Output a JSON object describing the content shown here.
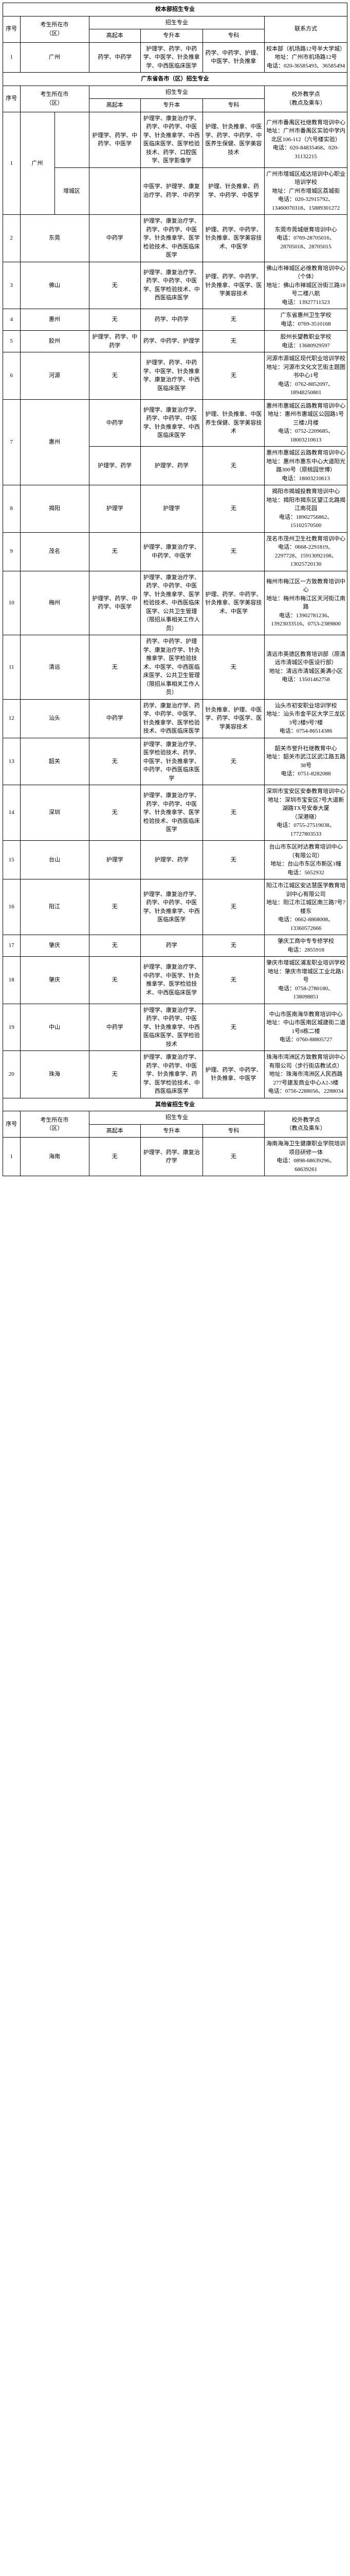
{
  "section1": {
    "title": "校本部招生专业",
    "headers": {
      "seq": "序号",
      "city": "考生所在市\n（区）",
      "majorGroup": "招生专业",
      "gao": "高起本",
      "zhuanben": "专升本",
      "zhuanke": "专科",
      "contact": "联系方式"
    },
    "rows": [
      {
        "seq": "1",
        "city": "广州",
        "gao": "药学、中药学",
        "zhuanben": "护理学、药学、中药学、中医学、针灸推拿学、中西医临床医学",
        "zhuanke": "药学、中药学、护理、中医学、针灸推拿",
        "contact": "校本部（机场路12号半大学城）\n地址：广州市机场路12号\n电话：020-36585493、36585494"
      }
    ]
  },
  "section2": {
    "title": "广东省各市（区）招生专业",
    "headers": {
      "seq": "序号",
      "city": "考生所在市\n（区）",
      "majorGroup": "招生专业",
      "gao": "高起本",
      "zhuanben": "专升本",
      "zhuanke": "专科",
      "contact": "校外教学点\n（教点及乘车）"
    },
    "rows": [
      {
        "seq": "1",
        "city": "广州",
        "sub1": "",
        "gao1": "护理学、药学、中药学、中医学",
        "zhuanben1": "护理学、康复治疗学、药学、中药学、中医学、针灸推拿学、中西医临床医学、医学检验技术、药学、口腔医学、医学影像学",
        "zhuanke1": "护理、针灸推拿、中医学、药学、中药学、中医养生保健、医学美容技术",
        "contact1": "广州市番禺区社继教育培训中心\n地址：广州市番禺区实验中学内北区106-112（六号楼实验）\n电话：020-84835468、020-31132215",
        "sub2": "增城区",
        "gao2": "",
        "zhuanben2": "中医学、护理学、康复治疗学、药学、中药学",
        "zhuanke2": "护理、针灸推拿、药学、中药学、中医学",
        "contact2": "广州市增城区成达培训中心职业培训学校\n地址：广州市增城区荔城街\n电话：020-32915792、13460070318、15889301272"
      },
      {
        "seq": "2",
        "city": "东莞",
        "gao": "中药学",
        "zhuanben": "护理学、康复治疗学、药学、中药学、中医学、针灸推拿学、医学检验技术、中西医临床医学",
        "zhuanke": "护理、药学、中药学、针灸推拿、医学美容技术、中医学",
        "contact": "东莞市莞城继育培训中心\n电话：0769-28705016、28705018、28705015"
      },
      {
        "seq": "3",
        "city": "佛山",
        "gao": "无",
        "zhuanben": "护理学、康复治疗学、药学、中药学、中医学、医学检验技术、中西医临床医学",
        "zhuanke": "护理、药学、中药学、针灸推拿、中医学、医学美容技术",
        "contact": "佛山市禅城区必维教育培训中心（个体）\n地址：佛山市禅城区汾街三路18号二楼八航\n电话：13927711523"
      },
      {
        "seq": "4",
        "city": "惠州",
        "gao": "无",
        "zhuanben": "药学、中药学",
        "zhuanke": "无",
        "contact": "广东省惠州卫生学校\n电话：0769-3510168"
      },
      {
        "seq": "5",
        "city": "胶州",
        "gao": "护理学、药学、中药学",
        "zhuanben": "药学、中药学、护理学",
        "zhuanke": "无",
        "contact": "胶州长望教职业学校\n电话：13680929597"
      },
      {
        "seq": "6",
        "city": "河源",
        "gao": "无",
        "zhuanben": "护理学、药学、中药学、中医学、针灸推拿学、康复治疗学、中西医临床医学",
        "zhuanke": "无",
        "contact": "河源市源城区现代职业培训学校\n地址：河源市文化文艺街主题图书中心1号\n电话：0762-8852097、18948250801"
      },
      {
        "seq": "7",
        "city": "惠州",
        "gao1": "中药学",
        "zhuanben1": "护理学、康复治疗学、药学、中药学、中医学、针灸推拿学、中西医临床医学",
        "zhuanke1": "护理、针灸推拿、中医养生保健、医学美容技术",
        "contact1": "惠州市惠城区云路教育培训中心\n地址：惠州市惠城区公园路1号三楼2月楼\n电话：0752-2209685、18003210613",
        "gao2": "护理学、药学",
        "zhuanben2": "护理学、药学",
        "zhuanke2": "无",
        "contact2": "惠州市惠城区云路教育培训中心\n地址：惠州市惠东中心大道阳光路300号（原桃园世博）\n电话：18003210613"
      },
      {
        "seq": "8",
        "city": "揭阳",
        "gao": "护理学",
        "zhuanben": "护理学",
        "zhuanke": "无",
        "contact": "揭阳市揭城投教育培训中心\n地址：揭阳市揭东区望江北路揭江南花园\n电话：18902756862、15102570500"
      },
      {
        "seq": "9",
        "city": "茂名",
        "gao": "无",
        "zhuanben": "护理学、康复治疗学、中药学、中医学",
        "zhuanke": "无",
        "contact": "茂名市茂州卫生社教育培训中心\n电话：0668-2291819、2297728、15913092108、13025720130"
      },
      {
        "seq": "10",
        "city": "梅州",
        "gao": "护理学、药学、中药学、中医学",
        "zhuanben": "护理学、康复治疗学、药学、中药学、中医学、针灸推拿学、医学检验技术、中西医临床医学、公共卫生管理（限招从事相关工作人员）",
        "zhuanke": "护理、药学、中药学、针灸推拿、医学美容技术、中医学",
        "contact": "梅州市梅江区一方致教育培训中心\n地址：梅州市梅江区天河街江南路\n电话：13902781236、13923033516、0753-2389800"
      },
      {
        "seq": "11",
        "city": "清远",
        "gao": "无",
        "zhuanben": "药学、中药学、护理学、康复治疗学、针灸推拿学、医学检验技术、中医学、中西医临床医学、公共卫生管理（限招从事相关工作人员）",
        "zhuanke": "无",
        "contact": "清远市英德区教育培训部（原清远市清城区中医设行部）\n地址：清远市清城区美满小区\n电话：13501462758"
      },
      {
        "seq": "12",
        "city": "汕头",
        "gao": "中药学",
        "zhuanben": "药学、康复治疗学、药学、中药学、中医学、针灸推拿学、医学检验技术、中西医临床医学",
        "zhuanke": "针灸推拿、护理、中医学、药学、中医学、医学美容技术",
        "contact": "汕头市初安职业培训学校\n地址：汕头市金平区大学三龙区3号2楼9号7楼\n电话：0754-86514386"
      },
      {
        "seq": "13",
        "city": "韶关",
        "gao": "无",
        "zhuanben": "护理学、康复治疗学、医学检验技术、药学、中医学、针灸推拿学、中药学、中西医临床医学",
        "zhuanke": "无",
        "contact": "韶关市誉升社继教育中心\n地址：韶关市武江区武江路五路38号\n电话：0751-8282088"
      },
      {
        "seq": "14",
        "city": "深圳",
        "gao": "无",
        "zhuanben": "护理学、康复治疗学、药学、中药学、中医学、针灸推拿学、医学检验技术、中西医临床医学",
        "zhuanke": "无",
        "contact": "深圳市宝安区安泰教育培训中心\n地址：深圳市宝安区7号大道新湖路TX号安泰大厦\n（深港晓）\n电话：0755-27519038、17727803533"
      },
      {
        "seq": "15",
        "city": "台山",
        "gao": "护理学",
        "zhuanben": "护理学、药学",
        "zhuanke": "无",
        "contact": "台山市东区时达教育培训中心（有限公司）\n地址：台山市东区市新区1幢\n电话：5652932"
      },
      {
        "seq": "16",
        "city": "阳江",
        "gao": "无",
        "zhuanben": "护理学、康复治疗学、药学、中药学、中医学、针灸推拿学、中西医临床医学",
        "zhuanke": "无",
        "contact": "阳江市江城区安达慧医学教育培训中心有限公司\n地址：阳江市江城区南三路7号7楼东\n电话：0662-8868008、13360572666"
      },
      {
        "seq": "17",
        "city": "肇庆",
        "gao": "无",
        "zhuanben": "药学",
        "zhuanke": "无",
        "contact": "肇庆工商中专专修学校\n电话：2855918"
      },
      {
        "seq": "18",
        "city": "肇庆",
        "gao": "无",
        "zhuanben": "护理学、康复治疗学、中药学、中医学、针灸推拿学、医学检验技术、中西医临床医学",
        "zhuanke": "无",
        "contact": "肇庆市增城区浦发职业培训学校\n地址：肇庆市增城区工业北路1号\n电话：0758-2780180、138098851"
      },
      {
        "seq": "19",
        "city": "中山",
        "gao": "中药学",
        "zhuanben": "护理学、康复治疗学、药学、中药学、中医学、针灸推拿学、中西医临床医学、医学检验技术",
        "zhuanke": "无",
        "contact": "中山市医南海华教育培训中心\n地址：中山市医南区城建街二道1号8栋二楼\n电话：0760-88805727"
      },
      {
        "seq": "20",
        "city": "珠海",
        "gao": "无",
        "zhuanben": "护理学、康复治疗学、药学、中药学、中医学、针灸推拿学、药学、医学检验技术、中西医临床医学",
        "zhuanke": "护理、药学、中药学、针灸推拿、中医学",
        "contact": "珠海市湾洲区方致教育培训中心有限公司（步行街店教试点）\n地址：珠海市湾洲区人民西路277号建发商业中心A2-3楼\n电话：0756-2288056、2288034"
      }
    ]
  },
  "section3": {
    "title": "其他省招生专业",
    "headers": {
      "seq": "序号",
      "city": "考生所在市\n（区）",
      "majorGroup": "招生专业",
      "gao": "高起本",
      "zhuanben": "专升本",
      "zhuanke": "专科",
      "contact": "校外教学点\n（教点及乘车）"
    },
    "rows": [
      {
        "seq": "1",
        "city": "海南",
        "gao": "无",
        "zhuanben": "护理学、药学、康复治疗学",
        "zhuanke": "无",
        "contact": "海南海海卫生健康职业学院培训项目研修一体\n电话：0898-68639296、68639261"
      }
    ]
  }
}
